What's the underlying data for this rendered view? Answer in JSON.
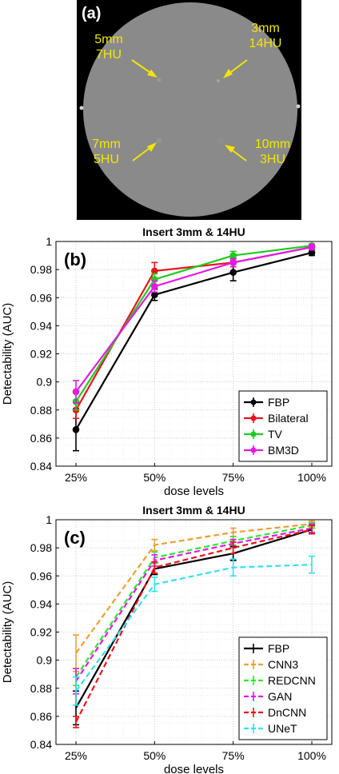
{
  "panel_a": {
    "label": "(a)",
    "annotations": [
      {
        "line1": "5mm",
        "line2": "7HU"
      },
      {
        "line1": "3mm",
        "line2": "14HU"
      },
      {
        "line1": "7mm",
        "line2": "5HU"
      },
      {
        "line1": "10mm",
        "line2": "3HU"
      }
    ],
    "colors": {
      "background": "#000000",
      "phantom": "#8a8a8a",
      "annotation": "#f2e600"
    }
  },
  "chart_data": [
    {
      "type": "line",
      "panel_label": "(b)",
      "title": "Insert 3mm & 14HU",
      "xlabel": "dose levels",
      "ylabel": "Detectability (AUC)",
      "categories": [
        "25%",
        "50%",
        "75%",
        "100%"
      ],
      "ylim": [
        0.84,
        1.0
      ],
      "yticks": [
        "0.84",
        "0.86",
        "0.88",
        "0.9",
        "0.92",
        "0.94",
        "0.96",
        "0.98",
        "1"
      ],
      "grid": "on (dotted, with minor lines)",
      "legend_position": "bottom-right",
      "series": [
        {
          "name": "FBP",
          "color": "#000000",
          "dash": "solid",
          "values": [
            0.866,
            0.962,
            0.978,
            0.992
          ],
          "err": [
            0.015,
            0.004,
            0.006,
            0.002
          ]
        },
        {
          "name": "Bilateral",
          "color": "#e8141c",
          "dash": "solid",
          "values": [
            0.88,
            0.979,
            0.985,
            0.996
          ],
          "err": [
            0.006,
            0.006,
            0.003,
            0.002
          ]
        },
        {
          "name": "TV",
          "color": "#1ecc1e",
          "dash": "solid",
          "values": [
            0.886,
            0.973,
            0.99,
            0.997
          ],
          "err": [
            0.006,
            0.004,
            0.003,
            0.001
          ]
        },
        {
          "name": "BM3D",
          "color": "#e41ae4",
          "dash": "solid",
          "values": [
            0.893,
            0.968,
            0.985,
            0.996
          ],
          "err": [
            0.008,
            0.004,
            0.003,
            0.002
          ]
        }
      ]
    },
    {
      "type": "line",
      "panel_label": "(c)",
      "title": "Insert 3mm & 14HU",
      "xlabel": "dose levels",
      "ylabel": "Detectability (AUC)",
      "categories": [
        "25%",
        "50%",
        "75%",
        "100%"
      ],
      "ylim": [
        0.84,
        1.0
      ],
      "yticks": [
        "0.84",
        "0.86",
        "0.88",
        "0.9",
        "0.92",
        "0.94",
        "0.96",
        "0.98",
        "1"
      ],
      "grid": "on (dotted, with minor lines)",
      "legend_position": "bottom-right",
      "series": [
        {
          "name": "FBP",
          "color": "#000000",
          "dash": "solid",
          "values": [
            0.866,
            0.965,
            0.976,
            0.993
          ],
          "err": [
            0.012,
            0.004,
            0.005,
            0.003
          ]
        },
        {
          "name": "CNN3",
          "color": "#e8a035",
          "dash": "dashed",
          "values": [
            0.905,
            0.982,
            0.991,
            0.997
          ],
          "err": [
            0.013,
            0.004,
            0.003,
            0.002
          ]
        },
        {
          "name": "REDCNN",
          "color": "#2ee62e",
          "dash": "dashed",
          "values": [
            0.888,
            0.973,
            0.985,
            0.996
          ],
          "err": [
            0.006,
            0.004,
            0.003,
            0.002
          ]
        },
        {
          "name": "GAN",
          "color": "#e41ae4",
          "dash": "dashed",
          "values": [
            0.885,
            0.971,
            0.983,
            0.994
          ],
          "err": [
            0.009,
            0.004,
            0.003,
            0.003
          ]
        },
        {
          "name": "DnCNN",
          "color": "#e8141c",
          "dash": "dashed",
          "values": [
            0.856,
            0.966,
            0.98,
            0.993
          ],
          "err": [
            0.004,
            0.004,
            0.004,
            0.003
          ]
        },
        {
          "name": "UNeT",
          "color": "#33e0ee",
          "dash": "dashed",
          "values": [
            0.878,
            0.954,
            0.966,
            0.968
          ],
          "err": [
            0.01,
            0.005,
            0.006,
            0.006
          ]
        }
      ]
    }
  ]
}
